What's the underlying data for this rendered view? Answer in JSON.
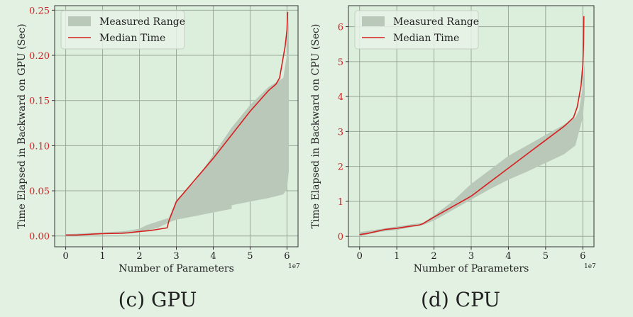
{
  "colors": {
    "figure_bg": "#e3f1e3",
    "plot_bg": "#dcefdc",
    "band": "#b9c8b8",
    "median": "#d62020",
    "grid": "#9aa89a",
    "ytick": "#d62020"
  },
  "chart_data": [
    {
      "type": "area",
      "caption": "(c) GPU",
      "xlabel": "Number of Parameters",
      "ylabel": "Time Elapsed in Backward on GPU (Sec)",
      "x_multiplier": "1e7",
      "xlim": [
        -0.3,
        6.3
      ],
      "ylim": [
        -0.012,
        0.255
      ],
      "xticks": [
        0,
        1,
        2,
        3,
        4,
        5,
        6
      ],
      "xtick_labels": [
        "0",
        "1",
        "2",
        "3",
        "4",
        "5",
        "6"
      ],
      "yticks": [
        0.0,
        0.05,
        0.1,
        0.15,
        0.2,
        0.25
      ],
      "ytick_labels": [
        "0.00",
        "0.05",
        "0.10",
        "0.15",
        "0.20",
        "0.25"
      ],
      "grid": true,
      "legend_position": "upper-left",
      "series": [
        {
          "name": "Measured Range",
          "kind": "band",
          "x": [
            0.0,
            0.5,
            1.0,
            1.5,
            1.7,
            2.0,
            2.2,
            2.5,
            2.8,
            3.0,
            3.5,
            4.0,
            4.5,
            4.5,
            5.0,
            5.5,
            5.9,
            6.0,
            6.05
          ],
          "lower": [
            0.0,
            0.001,
            0.002,
            0.003,
            0.003,
            0.004,
            0.006,
            0.009,
            0.015,
            0.018,
            0.022,
            0.026,
            0.03,
            0.034,
            0.038,
            0.042,
            0.046,
            0.052,
            0.072
          ],
          "upper": [
            0.002,
            0.003,
            0.004,
            0.005,
            0.006,
            0.008,
            0.012,
            0.016,
            0.02,
            0.04,
            0.06,
            0.09,
            0.12,
            0.12,
            0.145,
            0.165,
            0.175,
            0.2,
            0.248
          ]
        },
        {
          "name": "Median Time",
          "kind": "line",
          "x": [
            0.0,
            0.3,
            0.7,
            1.0,
            1.5,
            1.7,
            2.0,
            2.3,
            2.6,
            2.75,
            2.8,
            3.0,
            3.5,
            4.0,
            4.5,
            5.0,
            5.5,
            5.7,
            5.8,
            5.95,
            6.0,
            6.02
          ],
          "y": [
            0.001,
            0.001,
            0.002,
            0.0025,
            0.003,
            0.0035,
            0.005,
            0.006,
            0.008,
            0.009,
            0.017,
            0.038,
            0.062,
            0.086,
            0.112,
            0.138,
            0.161,
            0.168,
            0.175,
            0.21,
            0.228,
            0.248
          ]
        }
      ]
    },
    {
      "type": "area",
      "caption": "(d) CPU",
      "xlabel": "Number of Parameters",
      "ylabel": "Time Elapsed in Backward on CPU (Sec)",
      "x_multiplier": "1e7",
      "xlim": [
        -0.3,
        6.3
      ],
      "ylim": [
        -0.3,
        6.6
      ],
      "xticks": [
        0,
        1,
        2,
        3,
        4,
        5,
        6
      ],
      "xtick_labels": [
        "0",
        "1",
        "2",
        "3",
        "4",
        "5",
        "6"
      ],
      "yticks": [
        0,
        1,
        2,
        3,
        4,
        5,
        6
      ],
      "ytick_labels": [
        "0",
        "1",
        "2",
        "3",
        "4",
        "5",
        "6"
      ],
      "grid": true,
      "legend_position": "upper-left",
      "series": [
        {
          "name": "Measured Range",
          "kind": "band",
          "x": [
            0.0,
            0.5,
            1.0,
            1.5,
            1.7,
            2.0,
            2.5,
            3.0,
            3.5,
            4.0,
            4.5,
            5.0,
            5.5,
            5.8,
            5.9,
            6.0,
            6.05
          ],
          "lower": [
            0.0,
            0.12,
            0.18,
            0.28,
            0.32,
            0.45,
            0.75,
            1.05,
            1.35,
            1.62,
            1.85,
            2.1,
            2.35,
            2.6,
            3.0,
            3.4,
            4.0
          ],
          "upper": [
            0.12,
            0.2,
            0.28,
            0.36,
            0.38,
            0.6,
            1.0,
            1.5,
            1.9,
            2.3,
            2.6,
            2.9,
            3.2,
            3.4,
            3.6,
            4.3,
            5.0
          ]
        },
        {
          "name": "Median Time",
          "kind": "line",
          "x": [
            0.0,
            0.2,
            0.5,
            0.7,
            1.0,
            1.3,
            1.6,
            1.7,
            2.0,
            2.5,
            3.0,
            3.5,
            4.0,
            4.5,
            5.0,
            5.5,
            5.75,
            5.85,
            5.95,
            6.0,
            6.02,
            6.03
          ],
          "y": [
            0.05,
            0.08,
            0.15,
            0.2,
            0.23,
            0.28,
            0.32,
            0.36,
            0.55,
            0.85,
            1.15,
            1.55,
            1.95,
            2.35,
            2.75,
            3.15,
            3.4,
            3.7,
            4.3,
            4.9,
            5.5,
            6.3
          ]
        }
      ]
    }
  ]
}
